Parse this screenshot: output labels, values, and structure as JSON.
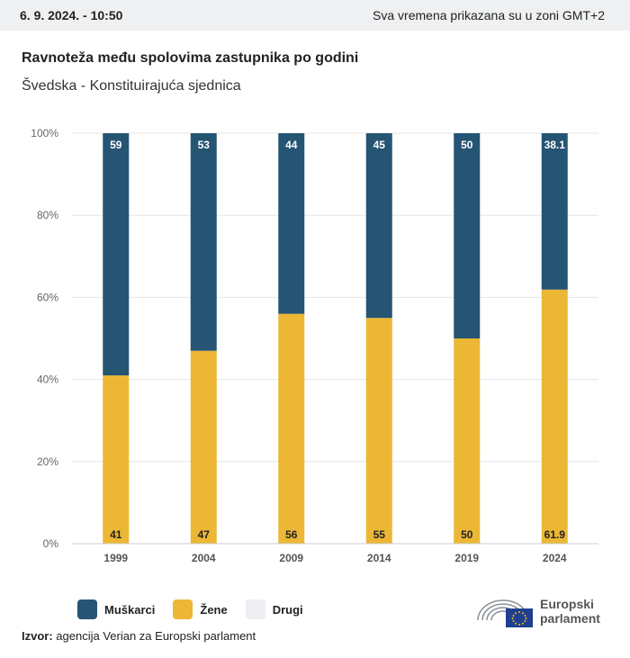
{
  "header": {
    "date": "6. 9. 2024. - 10:50",
    "timezone_note": "Sva vremena prikazana su u zoni GMT+2"
  },
  "title": "Ravnoteža među spolovima zastupnika po godini",
  "subtitle": "Švedska - Konstituirajuća sjednica",
  "legend": [
    {
      "label": "Muškarci",
      "color": "#265473"
    },
    {
      "label": "Žene",
      "color": "#ecb735"
    },
    {
      "label": "Drugi",
      "color": "#eceef1"
    }
  ],
  "source": {
    "prefix": "Izvor:",
    "text": "agencija Verian za Europski parlament"
  },
  "logo": {
    "line1": "Europski",
    "line2": "parlament"
  },
  "chart_data": {
    "type": "bar",
    "stacked": true,
    "categories": [
      "1999",
      "2004",
      "2009",
      "2014",
      "2019",
      "2024"
    ],
    "series": [
      {
        "name": "Žene",
        "values": [
          41,
          47,
          56,
          55,
          50,
          61.9
        ],
        "color": "#ecb735"
      },
      {
        "name": "Muškarci",
        "values": [
          59,
          53,
          44,
          45,
          50,
          38.1
        ],
        "color": "#265473"
      },
      {
        "name": "Drugi",
        "values": [
          0,
          0,
          0,
          0,
          0,
          0
        ],
        "color": "#eceef1"
      }
    ],
    "ylim": [
      0,
      100
    ],
    "yticks": [
      0,
      20,
      40,
      60,
      80,
      100
    ],
    "ytick_labels": [
      "0%",
      "20%",
      "40%",
      "60%",
      "80%",
      "100%"
    ],
    "grid": true
  }
}
